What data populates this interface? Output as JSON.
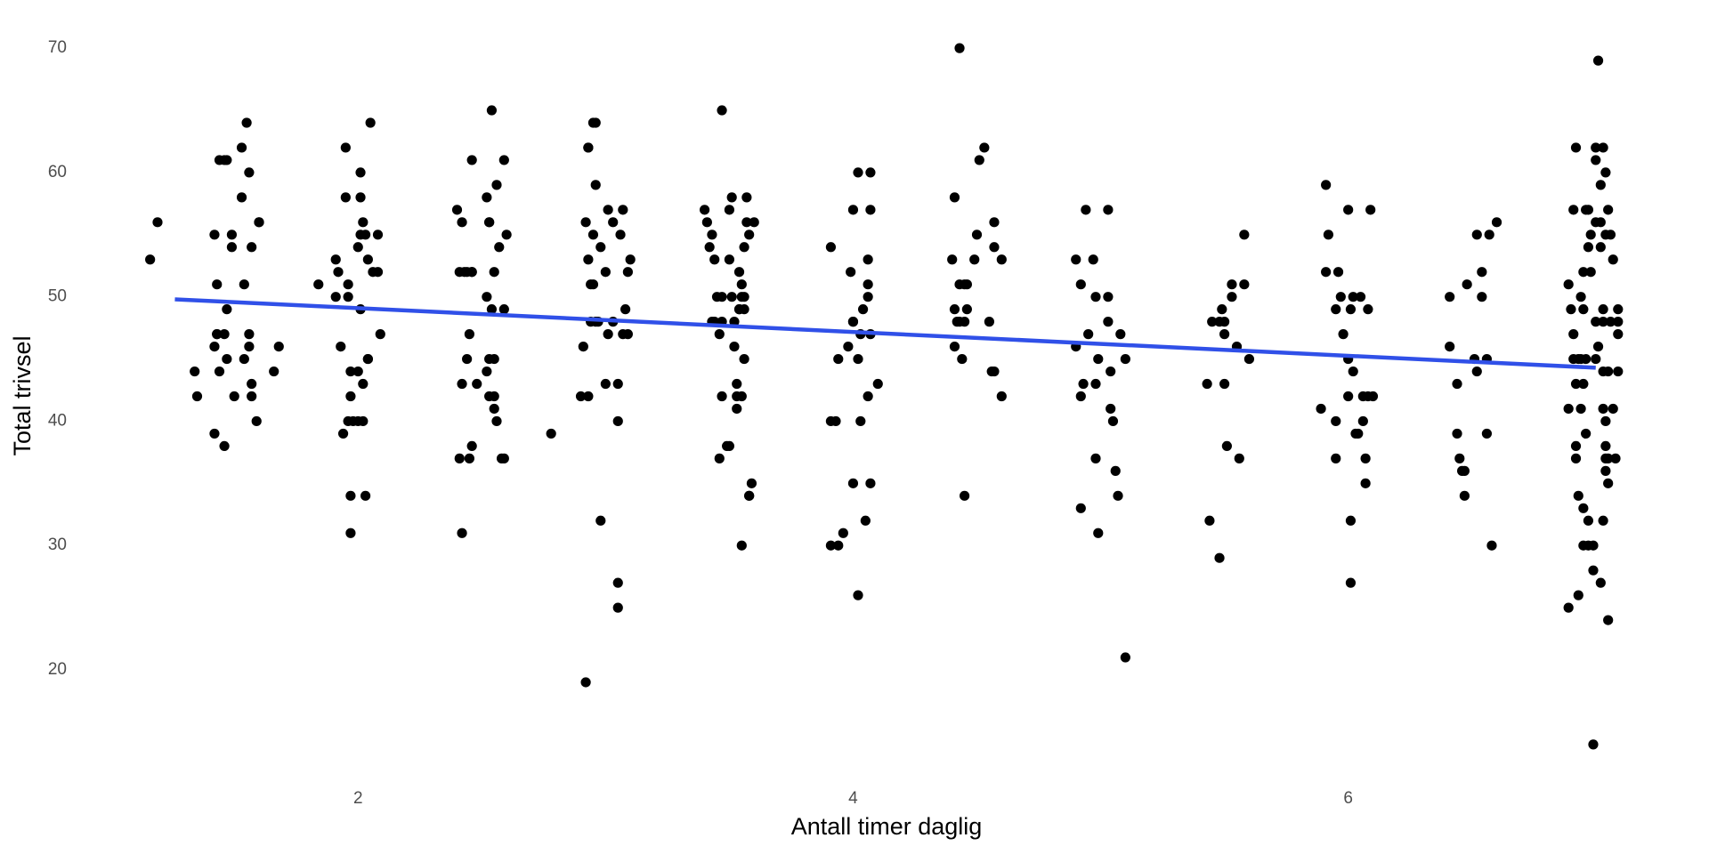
{
  "chart_data": {
    "type": "scatter",
    "x_label": "Antall timer daglig",
    "y_label": "Total trivsel",
    "color": "#000000",
    "xlim": [
      0.87,
      7.4
    ],
    "ylim": [
      11.2,
      72.8
    ],
    "xticks": [
      2,
      4,
      6
    ],
    "yticks": [
      20,
      30,
      40,
      50,
      60,
      70
    ],
    "x_minor_grid": [
      1,
      3,
      5,
      7
    ],
    "y_minor_grid": [
      15,
      25,
      35,
      45,
      55,
      65
    ],
    "grid": true,
    "x": [
      1.16,
      1.19,
      1.34,
      1.35,
      1.42,
      1.43,
      1.42,
      1.43,
      1.43,
      1.46,
      1.44,
      1.42,
      1.44,
      1.46,
      1.47,
      1.46,
      1.47,
      1.47,
      1.49,
      1.49,
      1.5,
      1.53,
      1.53,
      1.54,
      1.54,
      1.55,
      1.56,
      1.56,
      1.56,
      1.57,
      1.57,
      1.57,
      1.59,
      1.6,
      1.6,
      1.66,
      1.68,
      1.84,
      1.91,
      1.91,
      1.92,
      1.93,
      1.94,
      1.95,
      1.95,
      1.96,
      1.96,
      1.96,
      1.97,
      1.97,
      1.97,
      1.97,
      1.98,
      2.0,
      2.0,
      2.0,
      2.01,
      2.01,
      2.01,
      2.01,
      2.02,
      2.02,
      2.02,
      2.03,
      2.03,
      2.04,
      2.04,
      2.04,
      2.05,
      2.06,
      2.08,
      2.08,
      2.09,
      2.4,
      2.41,
      2.41,
      2.42,
      2.42,
      2.42,
      2.43,
      2.44,
      2.44,
      2.45,
      2.45,
      2.46,
      2.46,
      2.46,
      2.46,
      2.48,
      2.52,
      2.52,
      2.52,
      2.53,
      2.53,
      2.53,
      2.53,
      2.54,
      2.54,
      2.55,
      2.55,
      2.55,
      2.55,
      2.56,
      2.56,
      2.57,
      2.58,
      2.59,
      2.59,
      2.6,
      2.59,
      2.78,
      2.92,
      2.91,
      2.9,
      2.92,
      2.93,
      2.93,
      2.93,
      2.94,
      2.94,
      2.93,
      2.95,
      2.95,
      2.95,
      2.96,
      2.96,
      2.96,
      2.97,
      2.98,
      2.98,
      3.0,
      3.0,
      3.01,
      3.01,
      3.03,
      3.03,
      3.05,
      3.05,
      3.05,
      3.05,
      3.06,
      3.07,
      3.07,
      3.08,
      3.09,
      3.09,
      3.1,
      3.4,
      3.41,
      3.42,
      3.43,
      3.43,
      3.44,
      3.44,
      3.45,
      3.46,
      3.46,
      3.47,
      3.47,
      3.47,
      3.47,
      3.49,
      3.5,
      3.5,
      3.5,
      3.51,
      3.51,
      3.52,
      3.52,
      3.53,
      3.53,
      3.53,
      3.54,
      3.54,
      3.54,
      3.55,
      3.55,
      3.55,
      3.55,
      3.56,
      3.56,
      3.56,
      3.56,
      3.57,
      3.57,
      3.58,
      3.58,
      3.58,
      3.59,
      3.6,
      3.91,
      3.91,
      3.91,
      3.93,
      3.94,
      3.94,
      3.96,
      3.98,
      3.99,
      4.0,
      4.0,
      4.0,
      4.0,
      4.02,
      4.02,
      4.02,
      4.03,
      4.03,
      4.04,
      4.05,
      4.06,
      4.06,
      4.06,
      4.06,
      4.07,
      4.07,
      4.07,
      4.07,
      4.1,
      4.4,
      4.41,
      4.41,
      4.41,
      4.42,
      4.43,
      4.43,
      4.43,
      4.44,
      4.45,
      4.45,
      4.45,
      4.46,
      4.46,
      4.49,
      4.5,
      4.51,
      4.53,
      4.55,
      4.56,
      4.57,
      4.57,
      4.57,
      4.6,
      4.6,
      4.9,
      4.9,
      4.92,
      4.92,
      4.92,
      4.93,
      4.94,
      4.95,
      4.97,
      4.98,
      4.98,
      4.98,
      4.99,
      4.99,
      5.03,
      5.03,
      5.03,
      5.04,
      5.04,
      5.05,
      5.06,
      5.07,
      5.08,
      5.1,
      5.1,
      5.43,
      5.44,
      5.45,
      5.48,
      5.48,
      5.49,
      5.5,
      5.5,
      5.5,
      5.51,
      5.53,
      5.53,
      5.55,
      5.56,
      5.58,
      5.58,
      5.6,
      5.89,
      5.91,
      5.91,
      5.92,
      5.95,
      5.95,
      5.95,
      5.96,
      5.97,
      5.98,
      6.0,
      6.0,
      6.0,
      6.01,
      6.01,
      6.01,
      6.02,
      6.02,
      6.03,
      6.04,
      6.05,
      6.06,
      6.06,
      6.07,
      6.07,
      6.08,
      6.08,
      6.09,
      6.1,
      6.41,
      6.41,
      6.44,
      6.44,
      6.45,
      6.46,
      6.47,
      6.47,
      6.48,
      6.51,
      6.52,
      6.52,
      6.54,
      6.54,
      6.56,
      6.56,
      6.57,
      6.58,
      6.6,
      6.89,
      6.89,
      6.89,
      6.9,
      6.91,
      6.91,
      6.91,
      6.92,
      6.92,
      6.92,
      6.92,
      6.93,
      6.93,
      6.93,
      6.94,
      6.94,
      6.94,
      6.95,
      6.95,
      6.95,
      6.95,
      6.95,
      6.96,
      6.96,
      6.96,
      6.97,
      6.97,
      6.97,
      6.97,
      6.98,
      6.98,
      6.99,
      6.99,
      6.99,
      7.0,
      7.0,
      7.0,
      7.0,
      7.0,
      7.01,
      7.01,
      7.02,
      7.02,
      7.02,
      7.02,
      7.03,
      7.03,
      7.03,
      7.03,
      7.03,
      7.03,
      7.04,
      7.04,
      7.04,
      7.04,
      7.04,
      7.04,
      7.05,
      7.05,
      7.05,
      7.05,
      7.05,
      7.06,
      7.06,
      7.07,
      7.07,
      7.08,
      7.09,
      7.09,
      7.09,
      7.09
    ],
    "y": [
      53,
      56,
      44,
      42,
      55,
      51,
      46,
      47,
      47,
      47,
      44,
      39,
      61,
      61,
      61,
      38,
      45,
      49,
      55,
      54,
      42,
      62,
      58,
      51,
      45,
      64,
      60,
      46,
      47,
      43,
      42,
      54,
      40,
      56,
      56,
      44,
      46,
      51,
      50,
      53,
      52,
      46,
      39,
      62,
      58,
      51,
      50,
      40,
      34,
      31,
      44,
      42,
      40,
      40,
      44,
      54,
      60,
      58,
      49,
      55,
      43,
      40,
      56,
      34,
      55,
      45,
      45,
      53,
      64,
      52,
      52,
      55,
      47,
      57,
      52,
      37,
      31,
      43,
      56,
      52,
      52,
      45,
      37,
      47,
      38,
      61,
      52,
      52,
      43,
      58,
      44,
      50,
      56,
      45,
      56,
      42,
      65,
      49,
      45,
      42,
      41,
      52,
      40,
      59,
      54,
      37,
      49,
      61,
      55,
      37,
      39,
      19,
      46,
      42,
      56,
      62,
      42,
      53,
      48,
      51,
      62,
      51,
      64,
      55,
      59,
      48,
      64,
      48,
      32,
      54,
      43,
      52,
      47,
      57,
      56,
      48,
      27,
      25,
      40,
      43,
      55,
      57,
      47,
      49,
      47,
      52,
      53,
      57,
      56,
      54,
      48,
      55,
      53,
      48,
      50,
      37,
      47,
      65,
      50,
      42,
      48,
      38,
      57,
      38,
      53,
      58,
      50,
      48,
      46,
      43,
      41,
      42,
      52,
      49,
      49,
      50,
      30,
      51,
      42,
      49,
      45,
      54,
      50,
      58,
      56,
      34,
      55,
      34,
      35,
      56,
      30,
      54,
      40,
      40,
      45,
      30,
      31,
      46,
      52,
      48,
      48,
      35,
      57,
      26,
      45,
      60,
      47,
      40,
      49,
      32,
      51,
      42,
      53,
      50,
      47,
      35,
      60,
      57,
      43,
      53,
      49,
      58,
      46,
      48,
      51,
      70,
      48,
      45,
      51,
      34,
      48,
      49,
      51,
      53,
      55,
      61,
      62,
      48,
      44,
      56,
      54,
      44,
      53,
      42,
      53,
      46,
      51,
      33,
      42,
      43,
      57,
      47,
      53,
      43,
      50,
      37,
      45,
      31,
      57,
      50,
      48,
      44,
      41,
      40,
      36,
      34,
      47,
      21,
      45,
      43,
      32,
      48,
      29,
      48,
      49,
      43,
      47,
      48,
      38,
      50,
      51,
      46,
      37,
      55,
      51,
      45,
      41,
      59,
      52,
      55,
      37,
      49,
      40,
      52,
      50,
      47,
      45,
      42,
      57,
      27,
      32,
      49,
      44,
      50,
      39,
      39,
      50,
      42,
      40,
      35,
      37,
      49,
      42,
      57,
      42,
      50,
      46,
      39,
      43,
      37,
      36,
      34,
      36,
      51,
      45,
      55,
      44,
      50,
      52,
      45,
      39,
      55,
      30,
      56,
      25,
      51,
      41,
      49,
      45,
      47,
      57,
      43,
      37,
      62,
      38,
      34,
      45,
      26,
      50,
      41,
      45,
      33,
      49,
      30,
      43,
      52,
      57,
      39,
      45,
      54,
      30,
      57,
      32,
      52,
      55,
      28,
      30,
      14,
      56,
      61,
      48,
      45,
      62,
      46,
      69,
      54,
      27,
      59,
      56,
      48,
      62,
      44,
      32,
      49,
      41,
      55,
      37,
      36,
      60,
      40,
      38,
      57,
      24,
      44,
      37,
      35,
      55,
      48,
      53,
      41,
      37,
      44,
      49,
      47,
      48
    ],
    "trend": {
      "type": "line",
      "color": "#3050e8",
      "x": [
        1.26,
        7.0
      ],
      "y": [
        49.8,
        44.3
      ]
    }
  }
}
